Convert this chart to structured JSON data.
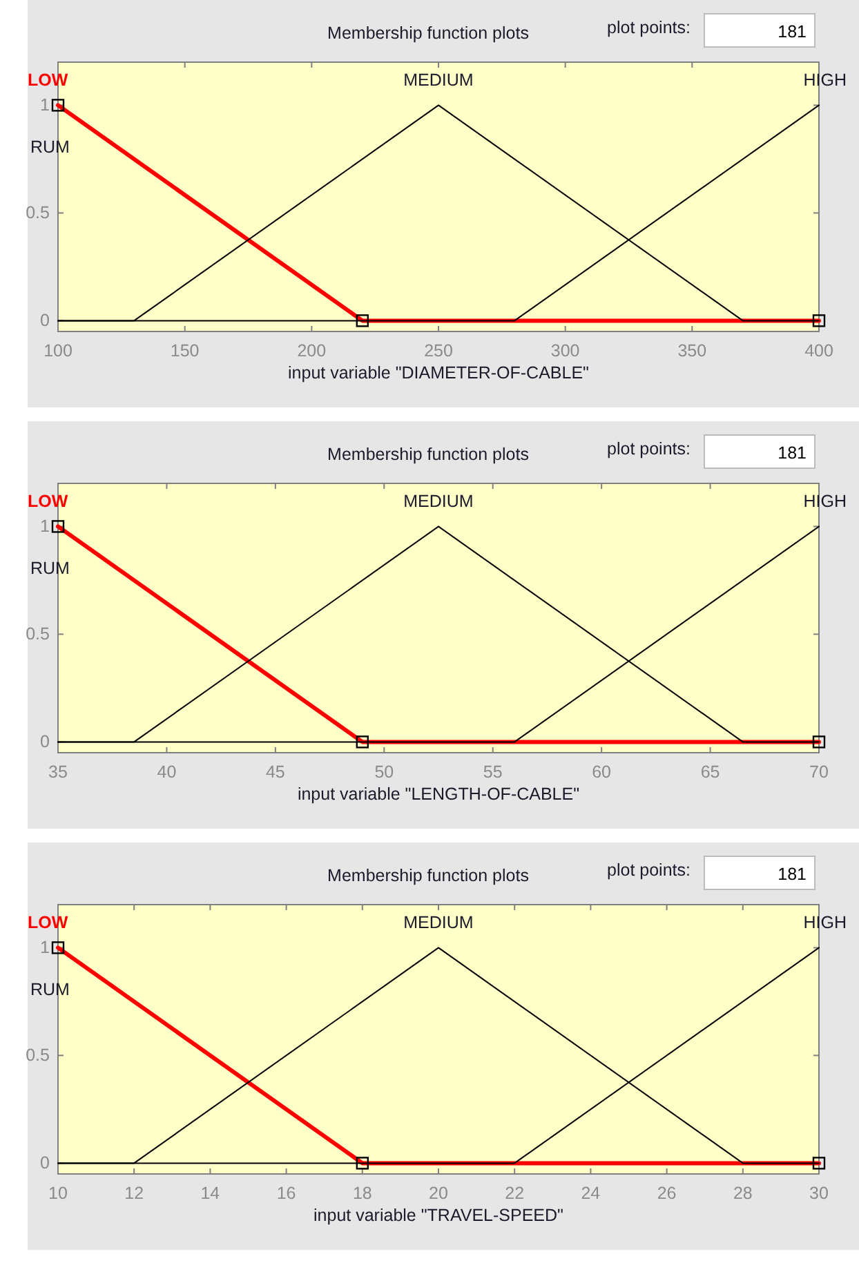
{
  "chart_data": [
    {
      "type": "line",
      "title": "Membership function plots",
      "annotations": [
        "plot points:",
        "181"
      ],
      "xlabel": "input variable \"DIAMETER-OF-CABLE\"",
      "ylabel": "RUM",
      "xlim": [
        100,
        400
      ],
      "xticks": [
        100,
        150,
        200,
        250,
        300,
        350,
        400
      ],
      "ylim": [
        -0.05,
        1.2
      ],
      "yticks": [
        0,
        0.5,
        1
      ],
      "grid": false,
      "series": [
        {
          "name": "LOW",
          "color": "#ff0000",
          "marker": "square",
          "x": [
            100,
            220,
            400
          ],
          "values": [
            1,
            0,
            0
          ]
        },
        {
          "name": "MEDIUM",
          "color": "#000000",
          "marker": "none",
          "x": [
            100,
            130,
            250,
            370,
            400
          ],
          "values": [
            0,
            0,
            1,
            0,
            0
          ]
        },
        {
          "name": "HIGH",
          "color": "#000000",
          "marker": "none",
          "x": [
            100,
            280,
            400
          ],
          "values": [
            0,
            0,
            1
          ]
        }
      ]
    },
    {
      "type": "line",
      "title": "Membership function plots",
      "annotations": [
        "plot points:",
        "181"
      ],
      "xlabel": "input variable \"LENGTH-OF-CABLE\"",
      "ylabel": "RUM",
      "xlim": [
        35,
        70
      ],
      "xticks": [
        35,
        40,
        45,
        50,
        55,
        60,
        65,
        70
      ],
      "ylim": [
        -0.05,
        1.2
      ],
      "yticks": [
        0,
        0.5,
        1
      ],
      "grid": false,
      "series": [
        {
          "name": "LOW",
          "color": "#ff0000",
          "marker": "square",
          "x": [
            35,
            49,
            70
          ],
          "values": [
            1,
            0,
            0
          ]
        },
        {
          "name": "MEDIUM",
          "color": "#000000",
          "marker": "none",
          "x": [
            35,
            38.5,
            52.5,
            66.5,
            70
          ],
          "values": [
            0,
            0,
            1,
            0,
            0
          ]
        },
        {
          "name": "HIGH",
          "color": "#000000",
          "marker": "none",
          "x": [
            35,
            56,
            70
          ],
          "values": [
            0,
            0,
            1
          ]
        }
      ]
    },
    {
      "type": "line",
      "title": "Membership function plots",
      "annotations": [
        "plot points:",
        "181"
      ],
      "xlabel": "input variable \"TRAVEL-SPEED\"",
      "ylabel": "RUM",
      "xlim": [
        10,
        30
      ],
      "xticks": [
        10,
        12,
        14,
        16,
        18,
        20,
        22,
        24,
        26,
        28,
        30
      ],
      "ylim": [
        -0.05,
        1.2
      ],
      "yticks": [
        0,
        0.5,
        1
      ],
      "grid": false,
      "series": [
        {
          "name": "LOW",
          "color": "#ff0000",
          "marker": "square",
          "x": [
            10,
            18,
            30
          ],
          "values": [
            1,
            0,
            0
          ]
        },
        {
          "name": "MEDIUM",
          "color": "#000000",
          "marker": "none",
          "x": [
            10,
            12,
            20,
            28,
            30
          ],
          "values": [
            0,
            0,
            1,
            0,
            0
          ]
        },
        {
          "name": "HIGH",
          "color": "#000000",
          "marker": "none",
          "x": [
            10,
            22,
            30
          ],
          "values": [
            0,
            0,
            1
          ]
        }
      ]
    }
  ]
}
